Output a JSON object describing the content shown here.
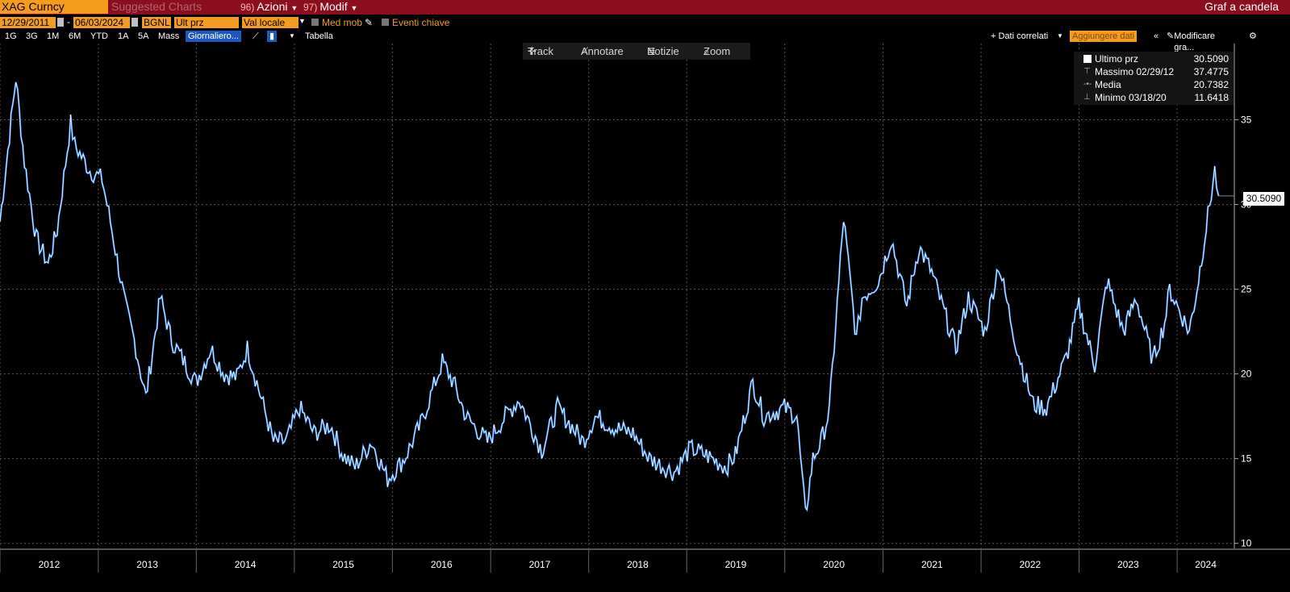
{
  "header": {
    "ticker": "XAG Curncy",
    "suggested": "Suggested Charts",
    "menu1_num": "96)",
    "menu1": "Azioni",
    "menu2_num": "97)",
    "menu2": "Modif",
    "right_title": "Graf a candela"
  },
  "controls": {
    "start_date": "12/29/2011",
    "end_date": "06/03/2024",
    "source": "BGNL",
    "field": "Ult prz",
    "currency": "Val locale",
    "moving_avg": "Med mob",
    "events": "Eventi chiave"
  },
  "ranges": [
    "1G",
    "3G",
    "1M",
    "6M",
    "YTD",
    "1A",
    "5A",
    "Mass"
  ],
  "range_selected": "Giornaliero...",
  "table_label": "Tabella",
  "right_tools": {
    "related": "+ Dati correlati",
    "add_data": "Aggiungere dati",
    "edit": "Modificare gra..."
  },
  "toolbar": {
    "track": "Track",
    "annotate": "Annotare",
    "news": "Notizie",
    "zoom": "Zoom"
  },
  "legend": {
    "last_label": "Ultimo prz",
    "last_value": "30.5090",
    "max_label": "Massimo 02/29/12",
    "max_value": "37.4775",
    "avg_label": "Media",
    "avg_value": "20.7382",
    "min_label": "Minimo 03/18/20",
    "min_value": "11.6418"
  },
  "last_price_label": "30.5090",
  "colors": {
    "header_bg": "#8a0e1e",
    "accent": "#f59b1e",
    "series_blue": "#2f86e8",
    "series_white": "#ffffff"
  },
  "chart_data": {
    "type": "line",
    "style": "candlestick",
    "ylim": [
      9.7,
      39.5
    ],
    "yticks": [
      10,
      15,
      20,
      25,
      30,
      35
    ],
    "xlim": [
      "2012-01-01",
      "2024-08-01"
    ],
    "xticks": [
      "2012",
      "2013",
      "2014",
      "2015",
      "2016",
      "2017",
      "2018",
      "2019",
      "2020",
      "2021",
      "2022",
      "2023",
      "2024"
    ],
    "grid": true,
    "series": [
      {
        "x": [
          "2012-01-01",
          "2012-02-29",
          "2012-04-01",
          "2012-05-15",
          "2012-06-28",
          "2012-08-01",
          "2012-09-20",
          "2012-10-05",
          "2012-12-01",
          "2013-01-15",
          "2013-02-15",
          "2013-04-12",
          "2013-05-15",
          "2013-06-27",
          "2013-08-20",
          "2013-10-01",
          "2013-12-31",
          "2014-02-24",
          "2014-04-15",
          "2014-06-01",
          "2014-07-10",
          "2014-09-01",
          "2014-10-15",
          "2014-12-01",
          "2015-01-20",
          "2015-03-15",
          "2015-05-15",
          "2015-07-01",
          "2015-08-15",
          "2015-10-15",
          "2015-12-14",
          "2016-02-15",
          "2016-04-15",
          "2016-07-05",
          "2016-08-15",
          "2016-10-01",
          "2016-12-20",
          "2017-02-25",
          "2017-04-17",
          "2017-07-10",
          "2017-09-07",
          "2017-12-12",
          "2018-01-25",
          "2018-04-11",
          "2018-06-15",
          "2018-08-15",
          "2018-11-15",
          "2019-01-15",
          "2019-03-15",
          "2019-05-28",
          "2019-07-01",
          "2019-09-04",
          "2019-10-15",
          "2019-12-31",
          "2020-02-15",
          "2020-03-18",
          "2020-04-15",
          "2020-05-15",
          "2020-06-15",
          "2020-08-07",
          "2020-09-24",
          "2020-10-15",
          "2020-12-15",
          "2021-02-01",
          "2021-03-30",
          "2021-05-15",
          "2021-07-01",
          "2021-09-29",
          "2021-11-15",
          "2022-01-15",
          "2022-03-07",
          "2022-05-15",
          "2022-07-14",
          "2022-09-01",
          "2022-11-15",
          "2022-12-31",
          "2023-02-28",
          "2023-04-15",
          "2023-05-15",
          "2023-06-15",
          "2023-08-01",
          "2023-10-03",
          "2023-11-15",
          "2023-12-04",
          "2024-02-15",
          "2024-03-15",
          "2024-04-12",
          "2024-05-20",
          "2024-06-03"
        ],
        "y": [
          29.0,
          37.48,
          32.5,
          28.0,
          26.5,
          28.5,
          34.8,
          33.5,
          32.0,
          31.5,
          29.0,
          24.0,
          22.0,
          18.6,
          24.5,
          22.0,
          19.5,
          21.5,
          20.0,
          19.8,
          21.5,
          18.5,
          16.0,
          16.0,
          18.0,
          16.5,
          17.0,
          15.2,
          14.5,
          16.0,
          13.8,
          15.0,
          17.0,
          20.7,
          19.5,
          17.5,
          16.0,
          17.5,
          18.5,
          15.5,
          18.0,
          16.0,
          17.5,
          16.8,
          16.5,
          15.0,
          14.2,
          15.6,
          15.2,
          14.5,
          15.2,
          19.5,
          17.5,
          18.0,
          17.5,
          11.64,
          15.0,
          16.0,
          17.8,
          29.2,
          22.0,
          24.5,
          25.5,
          28.0,
          24.0,
          27.5,
          26.0,
          21.5,
          24.5,
          22.5,
          26.5,
          21.5,
          18.2,
          18.0,
          21.0,
          24.0,
          20.5,
          25.5,
          24.0,
          22.5,
          24.5,
          20.8,
          23.0,
          25.0,
          22.5,
          25.0,
          28.0,
          32.0,
          30.509
        ]
      }
    ]
  }
}
